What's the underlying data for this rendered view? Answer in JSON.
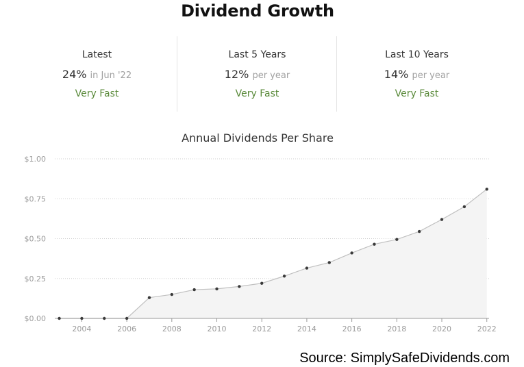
{
  "title": "Dividend Growth",
  "stats": [
    {
      "label": "Latest",
      "value": "24%",
      "sub": "in Jun '22",
      "rating": "Very Fast"
    },
    {
      "label": "Last 5 Years",
      "value": "12%",
      "sub": "per year",
      "rating": "Very Fast"
    },
    {
      "label": "Last 10 Years",
      "value": "14%",
      "sub": "per year",
      "rating": "Very Fast"
    }
  ],
  "colors": {
    "rating": "#5a8a3a",
    "line": "#c0c0c0",
    "area": "#f4f4f4",
    "point": "#3a3a3a",
    "grid": "#cfcfcf"
  },
  "source": "Source: SimplySafeDividends.com",
  "chart_data": {
    "type": "area",
    "title": "Annual Dividends Per Share",
    "xlabel": "",
    "ylabel": "",
    "x": [
      2003,
      2004,
      2005,
      2006,
      2007,
      2008,
      2009,
      2010,
      2011,
      2012,
      2013,
      2014,
      2015,
      2016,
      2017,
      2018,
      2019,
      2020,
      2021,
      2022
    ],
    "values": [
      0,
      0,
      0,
      0,
      0.13,
      0.15,
      0.18,
      0.185,
      0.2,
      0.22,
      0.265,
      0.315,
      0.35,
      0.41,
      0.465,
      0.495,
      0.545,
      0.62,
      0.7,
      0.81
    ],
    "ylim": [
      0,
      1
    ],
    "yticks": [
      0,
      0.25,
      0.5,
      0.75,
      1
    ],
    "ytick_labels": [
      "$0.00",
      "$0.25",
      "$0.50",
      "$0.75",
      "$1.00"
    ],
    "xticks": [
      2004,
      2006,
      2008,
      2010,
      2012,
      2014,
      2016,
      2018,
      2020,
      2022
    ],
    "grid": true,
    "legend": "none"
  }
}
